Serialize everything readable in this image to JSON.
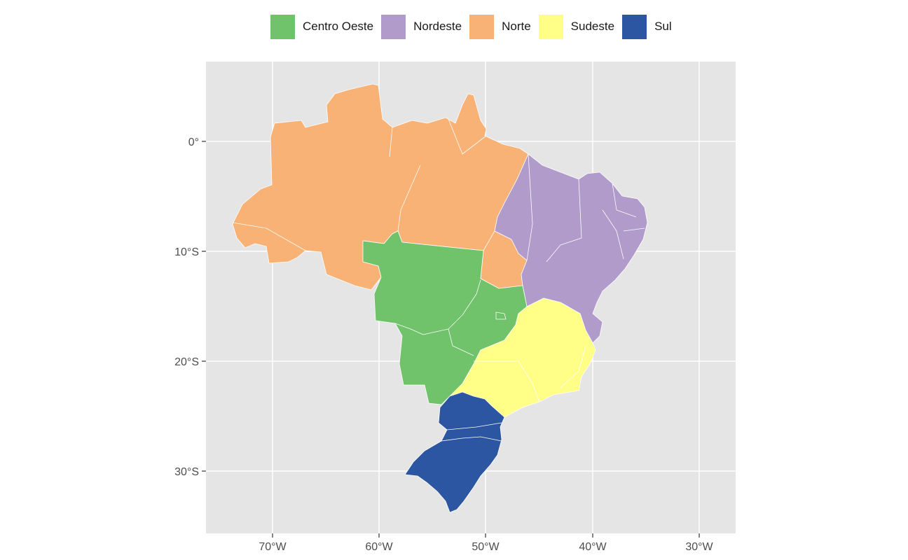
{
  "legend": {
    "items": [
      {
        "label": "Centro Oeste",
        "color": "#70c26b"
      },
      {
        "label": "Nordeste",
        "color": "#b09bcb"
      },
      {
        "label": "Norte",
        "color": "#f9b275"
      },
      {
        "label": "Sudeste",
        "color": "#ffff88"
      },
      {
        "label": "Sul",
        "color": "#2c56a1"
      }
    ]
  },
  "map": {
    "panel_background": "#e5e5e5",
    "grid_color": "#ffffff",
    "x_ticks": [
      "70°W",
      "60°W",
      "50°W",
      "40°W",
      "30°W"
    ],
    "y_ticks": [
      "0°",
      "10°S",
      "20°S",
      "30°S"
    ]
  }
}
